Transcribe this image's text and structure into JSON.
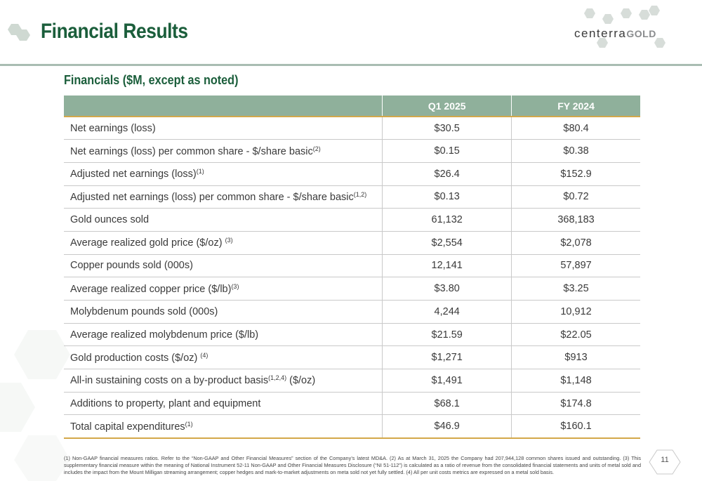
{
  "header": {
    "title": "Financial Results",
    "logo_text": "centerra",
    "logo_suffix": "GOLD"
  },
  "section": {
    "title": "Financials ($M, except as noted)"
  },
  "table": {
    "columns": [
      "",
      "Q1 2025",
      "FY 2024"
    ],
    "rows": [
      {
        "label": "Net earnings (loss)",
        "sup": "",
        "after": "",
        "q1_2025": "$30.5",
        "fy_2024": "$80.4"
      },
      {
        "label": "Net earnings (loss) per common share - $/share basic",
        "sup": "(2)",
        "after": "",
        "q1_2025": "$0.15",
        "fy_2024": "$0.38"
      },
      {
        "label": "Adjusted net earnings (loss)",
        "sup": "(1)",
        "after": "",
        "q1_2025": "$26.4",
        "fy_2024": "$152.9"
      },
      {
        "label": "Adjusted net earnings (loss) per common share - $/share basic",
        "sup": "(1,2)",
        "after": "",
        "q1_2025": "$0.13",
        "fy_2024": "$0.72"
      },
      {
        "label": "Gold ounces sold",
        "sup": "",
        "after": "",
        "q1_2025": "61,132",
        "fy_2024": "368,183"
      },
      {
        "label": "Average realized gold price ($/oz) ",
        "sup": "(3)",
        "after": "",
        "q1_2025": "$2,554",
        "fy_2024": "$2,078"
      },
      {
        "label": "Copper pounds sold (000s)",
        "sup": "",
        "after": "",
        "q1_2025": "12,141",
        "fy_2024": "57,897"
      },
      {
        "label": "Average realized copper price ($/lb)",
        "sup": "(3)",
        "after": "",
        "q1_2025": "$3.80",
        "fy_2024": "$3.25"
      },
      {
        "label": "Molybdenum pounds sold (000s)",
        "sup": "",
        "after": "",
        "q1_2025": "4,244",
        "fy_2024": "10,912"
      },
      {
        "label": "Average realized molybdenum price ($/lb)",
        "sup": "",
        "after": "",
        "q1_2025": "$21.59",
        "fy_2024": "$22.05"
      },
      {
        "label": "Gold production costs ($/oz) ",
        "sup": "(4)",
        "after": "",
        "q1_2025": "$1,271",
        "fy_2024": "$913"
      },
      {
        "label": "All-in sustaining costs on a by-product basis",
        "sup": "(1,2,4)",
        "after": " ($/oz)",
        "q1_2025": "$1,491",
        "fy_2024": "$1,148"
      },
      {
        "label": "Additions to property, plant and equipment",
        "sup": "",
        "after": "",
        "q1_2025": "$68.1",
        "fy_2024": "$174.8"
      },
      {
        "label": "Total capital expenditures",
        "sup": "(1)",
        "after": "",
        "q1_2025": "$46.9",
        "fy_2024": "$160.1"
      }
    ]
  },
  "footnote": "(1) Non-GAAP financial measures ratios. Refer to the “Non-GAAP and Other Financial Measures” section of the Company’s latest MD&A. (2) As at March 31, 2025 the Company had 207,944,128 common shares issued and outstanding. (3) This supplementary financial measure within the meaning of National Instrument 52-11 Non-GAAP and Other Financial Measures Disclosure (“NI 51-112”) is calculated as a ratio of revenue from the consolidated financial statements and units of metal sold and includes the impact from the Mount Milligan streaming arrangement; copper hedges and mark-to-market adjustments on meta sold not yet fully settled. (4) All per unit costs metrics are expressed on a metal sold basis.",
  "page_number": "11",
  "colors": {
    "brand_green": "#1b5e3b",
    "header_row": "#8fb09b",
    "accent_gold": "#d3a84a"
  }
}
